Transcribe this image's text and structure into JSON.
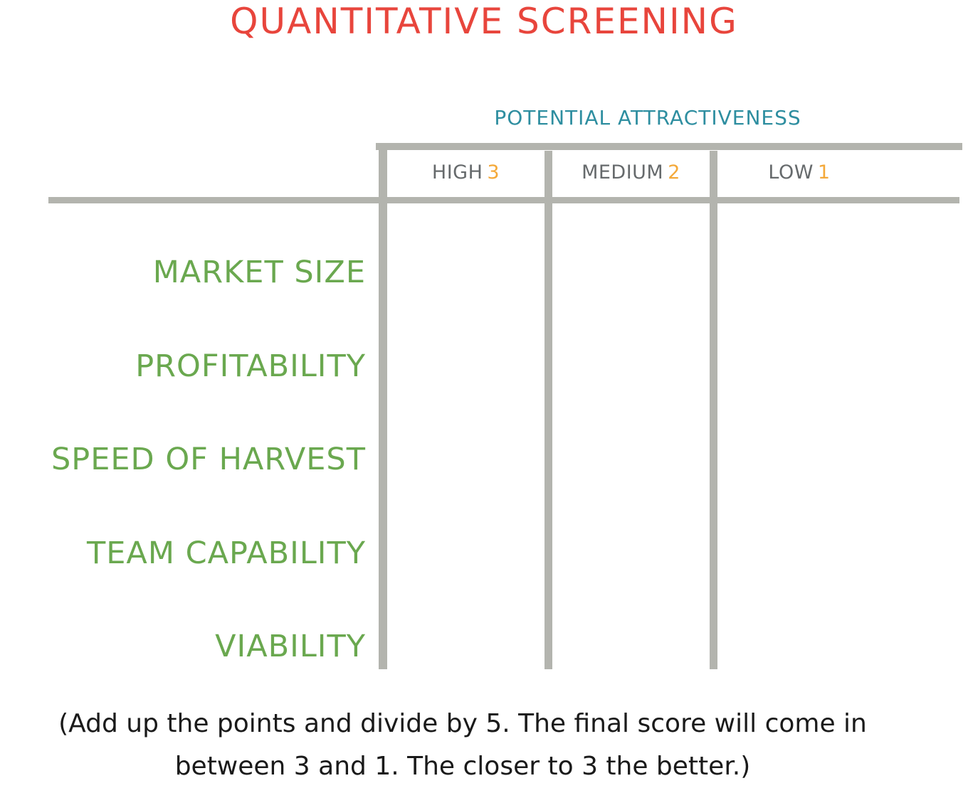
{
  "title": "QUANTITATIVE SCREENING",
  "group_header": "POTENTIAL ATTRACTIVENESS",
  "columns": [
    {
      "label": "HIGH",
      "score": "3"
    },
    {
      "label": "MEDIUM",
      "score": "2"
    },
    {
      "label": "LOW",
      "score": "1"
    }
  ],
  "rows": [
    "MARKET SIZE",
    "PROFITABILITY",
    "SPEED OF HARVEST",
    "TEAM CAPABILITY",
    "VIABILITY"
  ],
  "footnote": {
    "line1": "(Add up the points and divide by 5. The final score will come in",
    "line2": "between 3 and 1. The closer to 3 the better.)"
  },
  "colors": {
    "title": "#e8453c",
    "group_header": "#2e8ea0",
    "row_labels": "#6aa84f",
    "scores": "#f4a93a",
    "grid_lines": "#b3b4ae"
  }
}
